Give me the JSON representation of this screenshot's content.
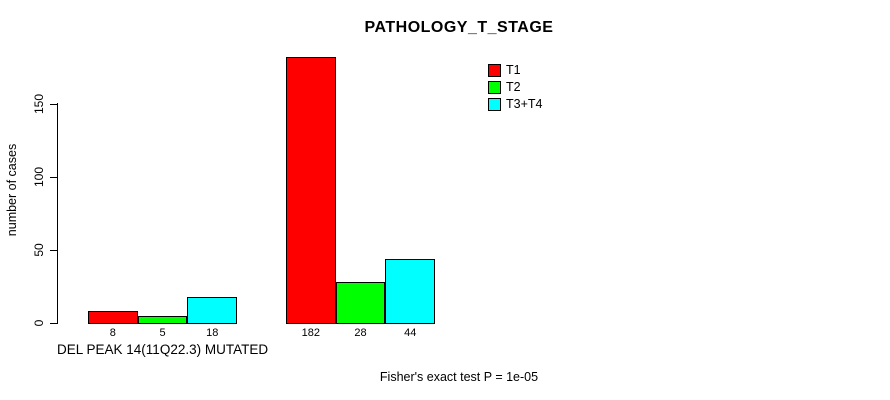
{
  "chart_data": {
    "type": "bar",
    "title": "PATHOLOGY_T_STAGE",
    "ylabel": "number of cases",
    "xlabel": "",
    "categories": [
      "DEL PEAK 14(11Q22.3) MUTATED",
      ""
    ],
    "series": [
      {
        "name": "T1",
        "color": "#FF0000",
        "values": [
          8,
          182
        ]
      },
      {
        "name": "T2",
        "color": "#00FF00",
        "values": [
          5,
          28
        ]
      },
      {
        "name": "T3+T4",
        "color": "#00FFFF",
        "values": [
          18,
          44
        ]
      }
    ],
    "yticks": [
      0,
      50,
      100,
      150
    ],
    "ylim": [
      0,
      190
    ],
    "grid": false,
    "bar_value_labels_shown": true,
    "legend_position": "top-right",
    "annotation": "Fisher's exact test P = 1e-05",
    "axis_color": "#000000",
    "bar_border_color": "#000000",
    "background_color": "#FFFFFF"
  }
}
